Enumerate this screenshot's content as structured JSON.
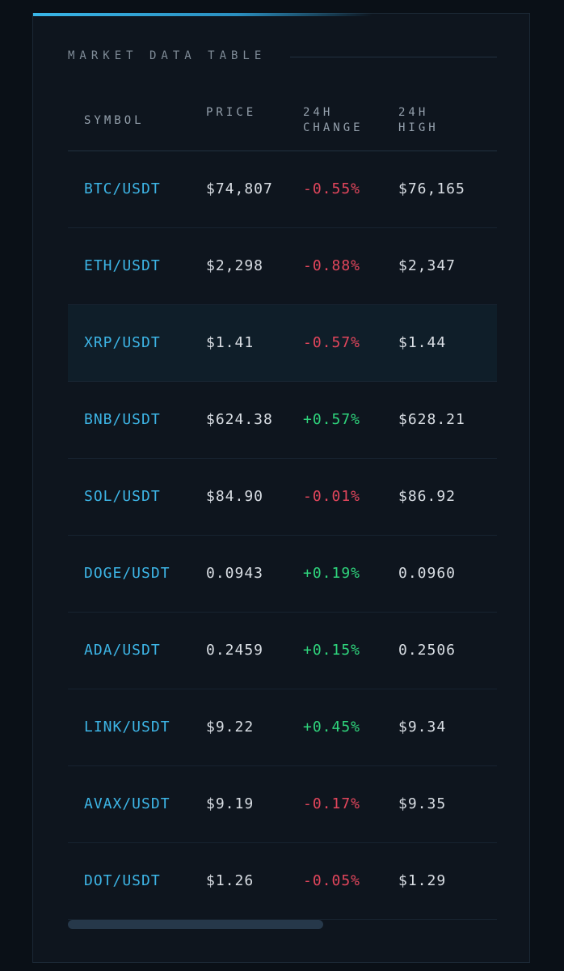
{
  "title": "MARKET DATA TABLE",
  "table": {
    "headers": [
      "SYMBOL",
      "PRICE",
      "24H CHANGE",
      "24H HIGH"
    ],
    "rows": [
      [
        "BTC/USDT",
        "$74,807",
        "-0.55%",
        "$76,165"
      ],
      [
        "ETH/USDT",
        "$2,298",
        "-0.88%",
        "$2,347"
      ],
      [
        "XRP/USDT",
        "$1.41",
        "-0.57%",
        "$1.44"
      ],
      [
        "BNB/USDT",
        "$624.38",
        "+0.57%",
        "$628.21"
      ],
      [
        "SOL/USDT",
        "$84.90",
        "-0.01%",
        "$86.92"
      ],
      [
        "DOGE/USDT",
        "0.0943",
        "+0.19%",
        "0.0960"
      ],
      [
        "ADA/USDT",
        "0.2459",
        "+0.15%",
        "0.2506"
      ],
      [
        "LINK/USDT",
        "$9.22",
        "+0.45%",
        "$9.34"
      ],
      [
        "AVAX/USDT",
        "$9.19",
        "-0.17%",
        "$9.35"
      ],
      [
        "DOT/USDT",
        "$1.26",
        "-0.05%",
        "$1.29"
      ]
    ]
  }
}
